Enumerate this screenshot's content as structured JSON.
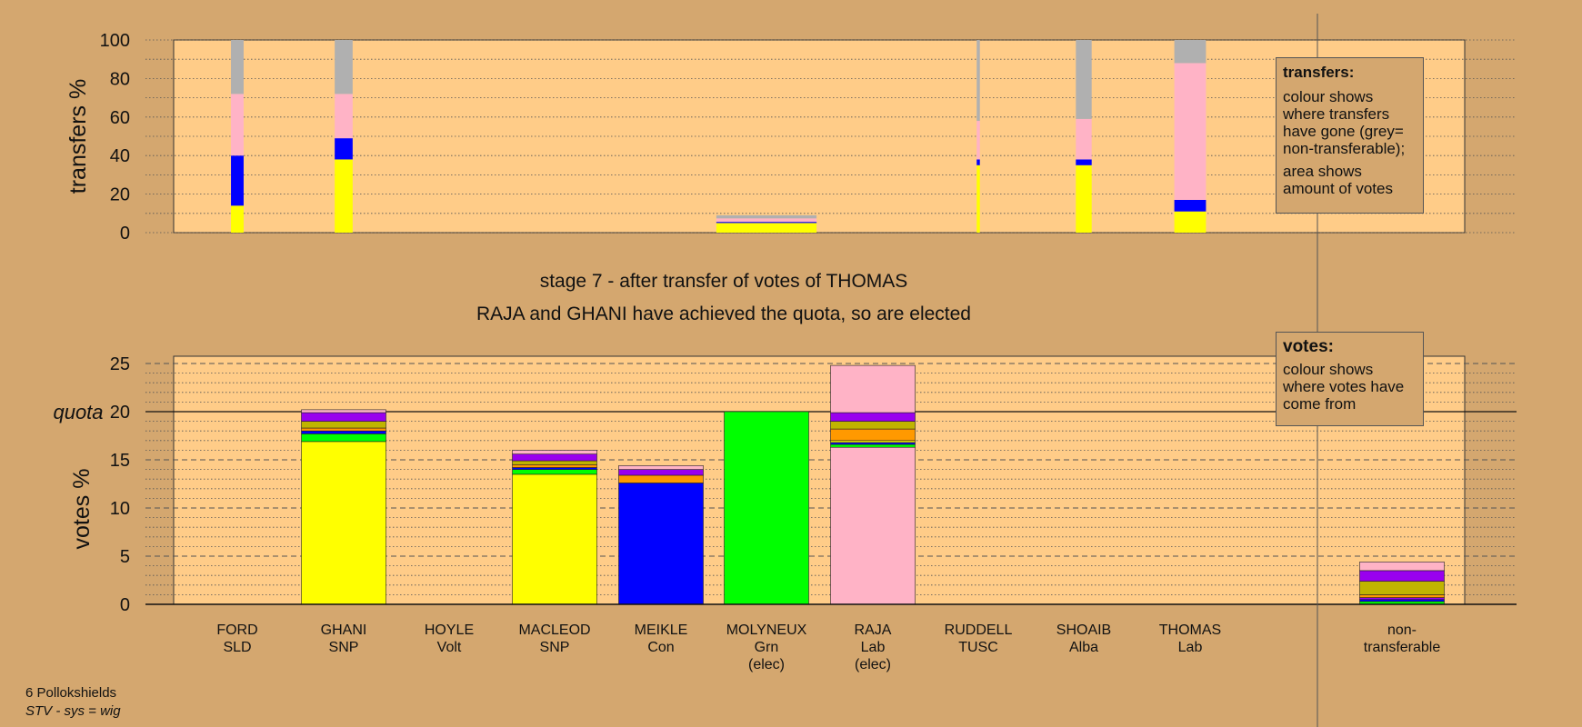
{
  "stage_title": "stage 7 - after transfer of votes of THOMAS",
  "elected_note": "RAJA and GHANI have achieved the quota, so are elected",
  "footer": {
    "ward": "6 Pollokshields",
    "system": "STV - sys = wig"
  },
  "legend_transfers": {
    "title": "transfers:",
    "line1": "colour shows where transfers have gone (grey= non-transferable);",
    "line2": "area shows amount of votes"
  },
  "legend_votes": {
    "title": "votes:",
    "line1": "colour shows where votes have come from"
  },
  "colors": {
    "background": "#d4a76f",
    "plot_background": "#ffcc88",
    "SNP": "#ffff00",
    "Con": "#0000ff",
    "Grn": "#00ff00",
    "Lab": "#ffb3c6",
    "Alba": "#9900ee",
    "Other": "#ff9900",
    "Olive": "#c0b400",
    "Nontransferable": "#b0b0b0"
  },
  "chart_data": [
    {
      "type": "bar",
      "name": "transfers",
      "ylabel": "transfers %",
      "ylim": [
        0,
        100
      ],
      "yticks": [
        0,
        20,
        40,
        60,
        80,
        100
      ],
      "categories": [
        "FORD",
        "GHANI",
        "HOYLE",
        "MACLEOD",
        "MEIKLE",
        "MOLYNEUX",
        "RAJA",
        "RUDDELL",
        "SHOAIB",
        "THOMAS"
      ],
      "bars": [
        {
          "candidate": "FORD",
          "width": 0.12,
          "segments": [
            {
              "color": "SNP",
              "value": 14
            },
            {
              "color": "Con",
              "value": 26
            },
            {
              "color": "Lab",
              "value": 32
            },
            {
              "color": "Nontransferable",
              "value": 28
            }
          ]
        },
        {
          "candidate": "GHANI",
          "width": 0.17,
          "segments": [
            {
              "color": "SNP",
              "value": 38
            },
            {
              "color": "Con",
              "value": 11
            },
            {
              "color": "Lab",
              "value": 23
            },
            {
              "color": "Nontransferable",
              "value": 28
            }
          ]
        },
        {
          "candidate": "MOLYNEUX",
          "width": 0.95,
          "segments": [
            {
              "color": "SNP",
              "value": 5
            },
            {
              "color": "Con",
              "value": 0.6
            },
            {
              "color": "Lab",
              "value": 1.8
            },
            {
              "color": "Nontransferable",
              "value": 1.6
            }
          ]
        },
        {
          "candidate": "RUDDELL",
          "width": 0.03,
          "segments": [
            {
              "color": "SNP",
              "value": 35
            },
            {
              "color": "Con",
              "value": 3
            },
            {
              "color": "Lab",
              "value": 20
            },
            {
              "color": "Nontransferable",
              "value": 42
            }
          ]
        },
        {
          "candidate": "SHOAIB",
          "width": 0.15,
          "segments": [
            {
              "color": "SNP",
              "value": 35
            },
            {
              "color": "Con",
              "value": 3
            },
            {
              "color": "Lab",
              "value": 21
            },
            {
              "color": "Nontransferable",
              "value": 41
            }
          ]
        },
        {
          "candidate": "THOMAS",
          "width": 0.3,
          "segments": [
            {
              "color": "SNP",
              "value": 11
            },
            {
              "color": "Con",
              "value": 6
            },
            {
              "color": "Lab",
              "value": 71
            },
            {
              "color": "Nontransferable",
              "value": 12
            }
          ]
        }
      ]
    },
    {
      "type": "bar",
      "name": "votes",
      "ylabel": "votes %",
      "ylim": [
        0,
        26
      ],
      "yticks": [
        0,
        5,
        10,
        15,
        20,
        25
      ],
      "quota": 20,
      "quota_label": "quota",
      "categories": [
        {
          "name": "FORD",
          "party": "SLD",
          "note": ""
        },
        {
          "name": "GHANI",
          "party": "SNP",
          "note": ""
        },
        {
          "name": "HOYLE",
          "party": "Volt",
          "note": ""
        },
        {
          "name": "MACLEOD",
          "party": "SNP",
          "note": ""
        },
        {
          "name": "MEIKLE",
          "party": "Con",
          "note": ""
        },
        {
          "name": "MOLYNEUX",
          "party": "Grn",
          "note": "(elec)"
        },
        {
          "name": "RAJA",
          "party": "Lab",
          "note": "(elec)"
        },
        {
          "name": "RUDDELL",
          "party": "TUSC",
          "note": ""
        },
        {
          "name": "SHOAIB",
          "party": "Alba",
          "note": ""
        },
        {
          "name": "THOMAS",
          "party": "Lab",
          "note": ""
        }
      ],
      "nontransferable_label": [
        "non-",
        "transferable"
      ],
      "bars": [
        {
          "candidate": "GHANI",
          "segments": [
            {
              "color": "SNP",
              "value": 16.9
            },
            {
              "color": "Grn",
              "value": 0.8
            },
            {
              "color": "Con",
              "value": 0.3
            },
            {
              "color": "Other",
              "value": 0.3
            },
            {
              "color": "Olive",
              "value": 0.7
            },
            {
              "color": "Alba",
              "value": 0.9
            },
            {
              "color": "Lab",
              "value": 0.3
            }
          ]
        },
        {
          "candidate": "MACLEOD",
          "segments": [
            {
              "color": "SNP",
              "value": 13.5
            },
            {
              "color": "Grn",
              "value": 0.5
            },
            {
              "color": "Con",
              "value": 0.2
            },
            {
              "color": "Other",
              "value": 0.3
            },
            {
              "color": "Olive",
              "value": 0.4
            },
            {
              "color": "Alba",
              "value": 0.7
            },
            {
              "color": "Lab",
              "value": 0.4
            }
          ]
        },
        {
          "candidate": "MEIKLE",
          "segments": [
            {
              "color": "Con",
              "value": 12.6
            },
            {
              "color": "Other",
              "value": 0.8
            },
            {
              "color": "Alba",
              "value": 0.6
            },
            {
              "color": "Lab",
              "value": 0.4
            }
          ]
        },
        {
          "candidate": "MOLYNEUX",
          "segments": [
            {
              "color": "Grn",
              "value": 20
            }
          ]
        },
        {
          "candidate": "RAJA",
          "segments": [
            {
              "color": "Lab",
              "value": 16.3
            },
            {
              "color": "Grn",
              "value": 0.3
            },
            {
              "color": "Con",
              "value": 0.2
            },
            {
              "color": "SNP",
              "value": 0.2
            },
            {
              "color": "Other",
              "value": 1.2
            },
            {
              "color": "Olive",
              "value": 0.8
            },
            {
              "color": "Alba",
              "value": 0.9
            },
            {
              "color": "Lab",
              "value": 4.9
            }
          ]
        },
        {
          "candidate": "non-transferable",
          "segments": [
            {
              "color": "Grn",
              "value": 0.3
            },
            {
              "color": "Con",
              "value": 0.2
            },
            {
              "color": "Alba",
              "value": 0.2
            },
            {
              "color": "Other",
              "value": 0.3
            },
            {
              "color": "Olive",
              "value": 1.4
            },
            {
              "color": "Alba",
              "value": 1.1
            },
            {
              "color": "Lab",
              "value": 0.9
            }
          ]
        }
      ]
    }
  ]
}
